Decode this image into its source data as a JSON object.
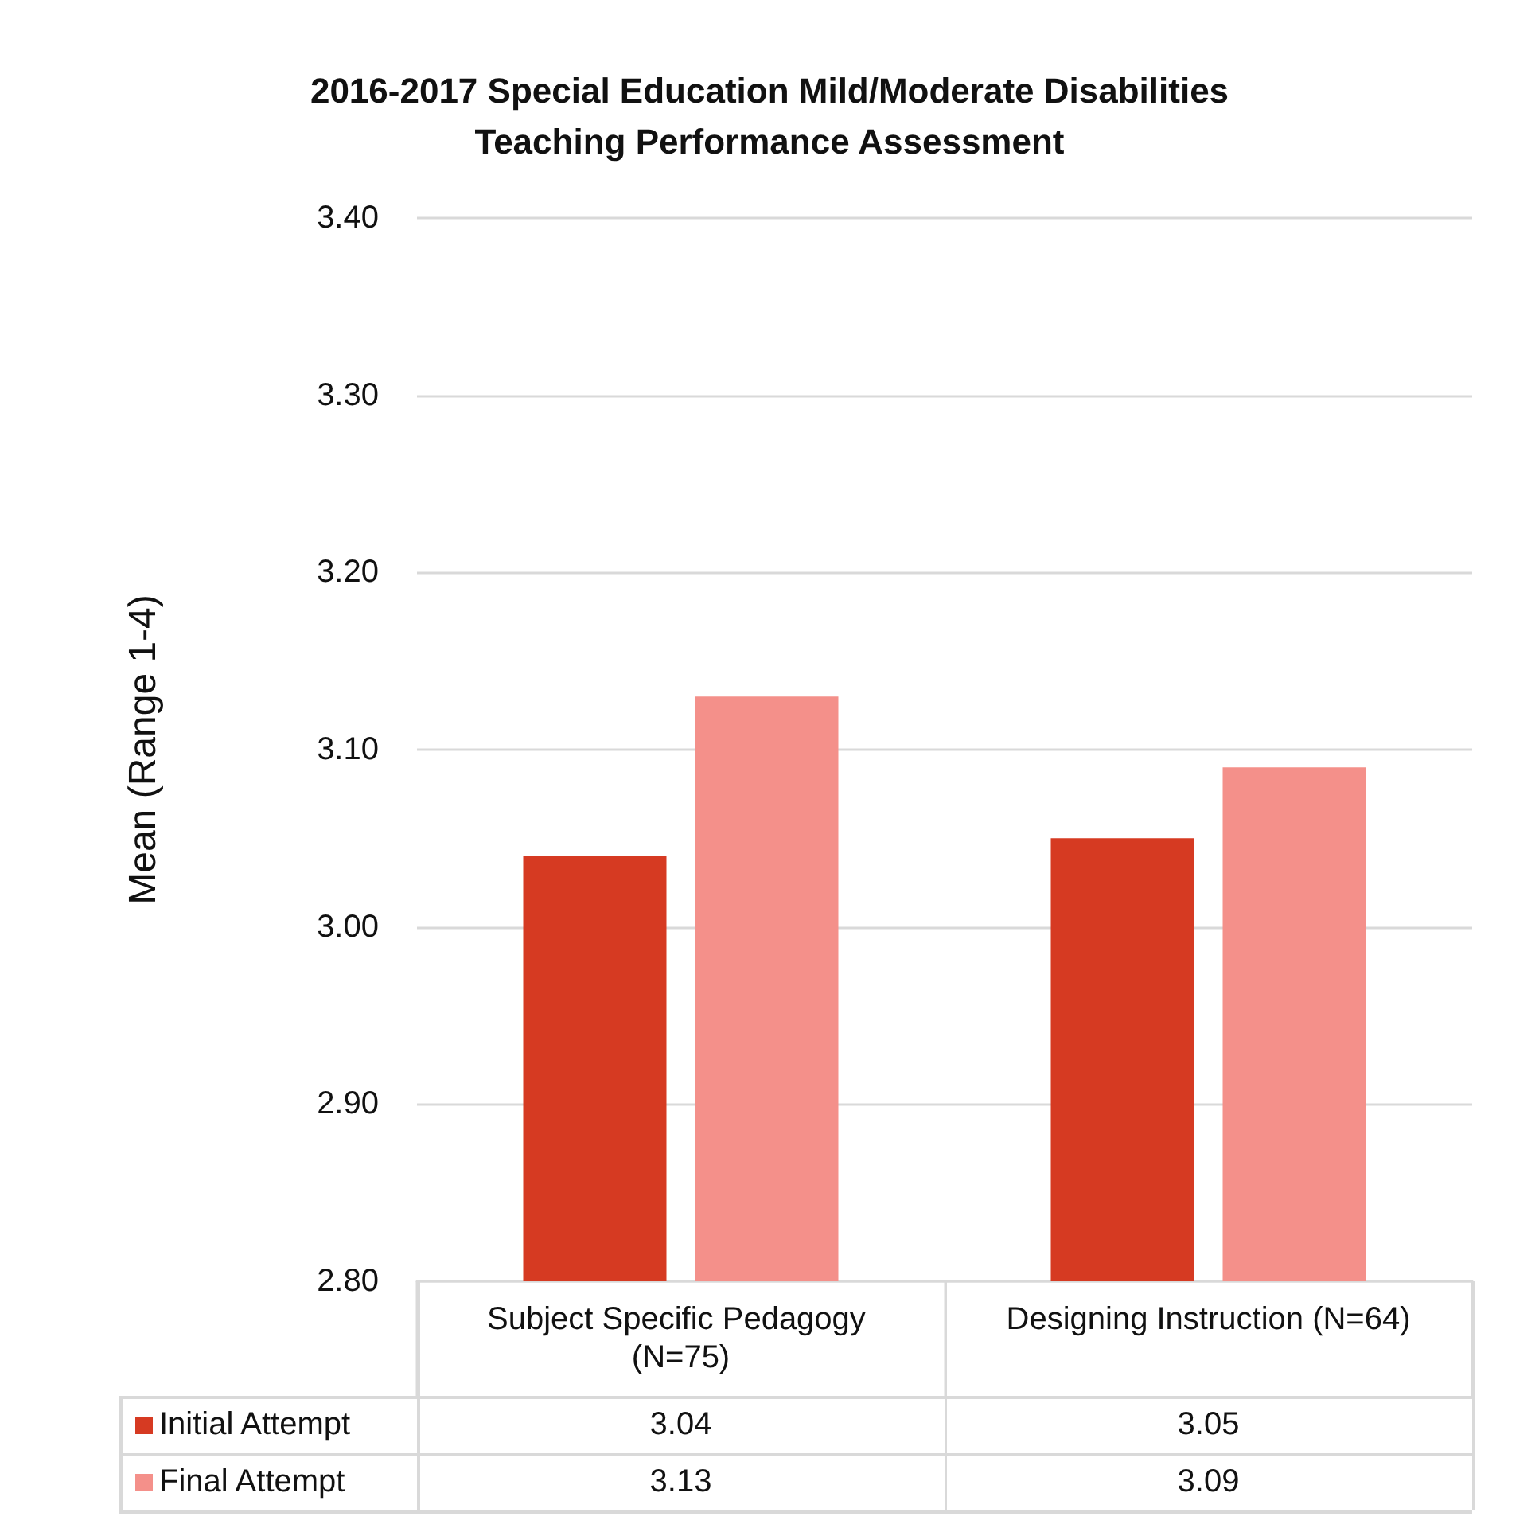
{
  "chart_data": {
    "type": "bar",
    "title": "2016-2017 Special Education Mild/Moderate Disabilities\nTeaching Performance Assessment",
    "ylabel": "Mean (Range 1-4)",
    "categories": [
      "Subject Specific Pedagogy (N=75)",
      "Designing Instruction (N=64)"
    ],
    "series": [
      {
        "name": "Initial Attempt",
        "color": "#d63a22",
        "values": [
          3.04,
          3.05
        ]
      },
      {
        "name": "Final Attempt",
        "color": "#f4908a",
        "values": [
          3.13,
          3.09
        ]
      }
    ],
    "ylim": [
      2.8,
      3.4
    ],
    "yticks": [
      {
        "value": 2.8,
        "label": "2.80"
      },
      {
        "value": 2.9,
        "label": "2.90"
      },
      {
        "value": 3.0,
        "label": "3.00"
      },
      {
        "value": 3.1,
        "label": "3.10"
      },
      {
        "value": 3.2,
        "label": "3.20"
      },
      {
        "value": 3.3,
        "label": "3.30"
      },
      {
        "value": 3.4,
        "label": "3.40"
      }
    ],
    "grid": "y",
    "legend": "bottom",
    "data_labels": true
  }
}
